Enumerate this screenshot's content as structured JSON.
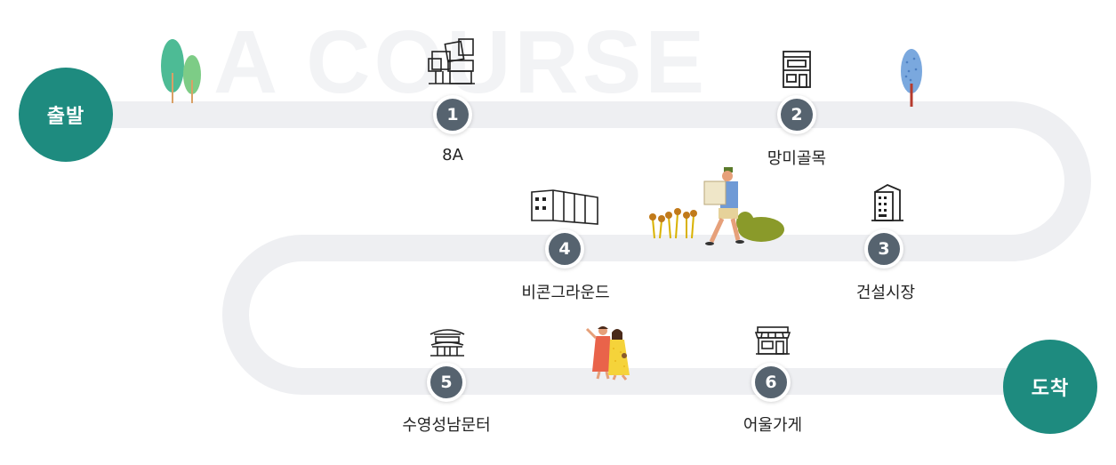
{
  "course": {
    "title_watermark": "A COURSE"
  },
  "start": {
    "label": "출발"
  },
  "end": {
    "label": "도착"
  },
  "stops": [
    {
      "number": "1",
      "name": "8A",
      "icon": "modern-building-icon"
    },
    {
      "number": "2",
      "name": "망미골목",
      "icon": "shop-building-icon"
    },
    {
      "number": "3",
      "name": "건설시장",
      "icon": "office-tower-icon"
    },
    {
      "number": "4",
      "name": "비콘그라운드",
      "icon": "container-building-icon"
    },
    {
      "number": "5",
      "name": "수영성남문터",
      "icon": "traditional-gate-icon"
    },
    {
      "number": "6",
      "name": "어울가게",
      "icon": "storefront-icon"
    }
  ],
  "colors": {
    "endpoint": "#1e8b7f",
    "badge": "#56636f",
    "path": "#eeeff2",
    "text": "#222222"
  }
}
